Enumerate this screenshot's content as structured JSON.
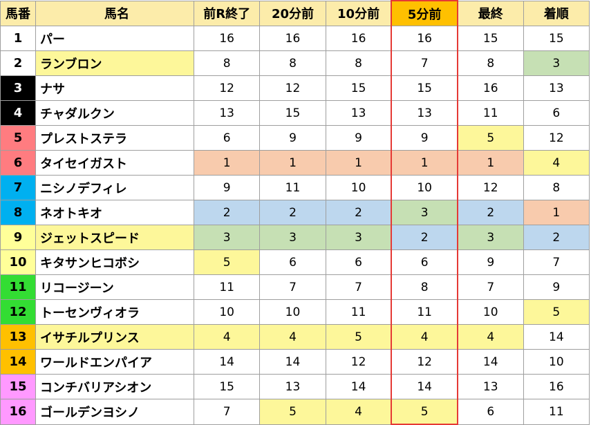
{
  "headers": [
    "馬番",
    "馬名",
    "前R終了",
    "20分前",
    "10分前",
    "5分前",
    "最終",
    "着順"
  ],
  "rows": [
    {
      "num": "1",
      "name": "パー",
      "v": [
        "16",
        "16",
        "16",
        "16",
        "15",
        "15"
      ]
    },
    {
      "num": "2",
      "name": "ランブロン",
      "v": [
        "8",
        "8",
        "8",
        "7",
        "8",
        "3"
      ]
    },
    {
      "num": "3",
      "name": "ナサ",
      "v": [
        "12",
        "12",
        "15",
        "15",
        "16",
        "13"
      ]
    },
    {
      "num": "4",
      "name": "チャダルクン",
      "v": [
        "13",
        "15",
        "13",
        "13",
        "11",
        "6"
      ]
    },
    {
      "num": "5",
      "name": "プレストステラ",
      "v": [
        "6",
        "9",
        "9",
        "9",
        "5",
        "12"
      ]
    },
    {
      "num": "6",
      "name": "タイセイガスト",
      "v": [
        "1",
        "1",
        "1",
        "1",
        "1",
        "4"
      ]
    },
    {
      "num": "7",
      "name": "ニシノデフィレ",
      "v": [
        "9",
        "11",
        "10",
        "10",
        "12",
        "8"
      ]
    },
    {
      "num": "8",
      "name": "ネオトキオ",
      "v": [
        "2",
        "2",
        "2",
        "3",
        "2",
        "1"
      ]
    },
    {
      "num": "9",
      "name": "ジェットスピード",
      "v": [
        "3",
        "3",
        "3",
        "2",
        "3",
        "2"
      ]
    },
    {
      "num": "10",
      "name": "キタサンヒコボシ",
      "v": [
        "5",
        "6",
        "6",
        "6",
        "9",
        "7"
      ]
    },
    {
      "num": "11",
      "name": "リコージーン",
      "v": [
        "11",
        "7",
        "7",
        "8",
        "7",
        "9"
      ]
    },
    {
      "num": "12",
      "name": "トーセンヴィオラ",
      "v": [
        "10",
        "10",
        "11",
        "11",
        "10",
        "5"
      ]
    },
    {
      "num": "13",
      "name": "イサチルプリンス",
      "v": [
        "4",
        "4",
        "5",
        "4",
        "4",
        "14"
      ]
    },
    {
      "num": "14",
      "name": "ワールドエンパイア",
      "v": [
        "14",
        "14",
        "12",
        "12",
        "14",
        "10"
      ]
    },
    {
      "num": "15",
      "name": "コンチバリアシオン",
      "v": [
        "15",
        "13",
        "14",
        "14",
        "13",
        "16"
      ]
    },
    {
      "num": "16",
      "name": "ゴールデンヨシノ",
      "v": [
        "7",
        "5",
        "4",
        "5",
        "6",
        "11"
      ]
    }
  ],
  "frame_colors": {
    "1": "#ffffff",
    "2": "#ffffff",
    "3": "#000000",
    "4": "#000000",
    "5": "#ff7c80",
    "6": "#ff7c80",
    "7": "#00b0f0",
    "8": "#00b0f0",
    "9": "#ffff99",
    "10": "#ffff99",
    "11": "#33dd33",
    "12": "#33dd33",
    "13": "#ffc000",
    "14": "#ffc000",
    "15": "#ff99ff",
    "16": "#ff99ff"
  },
  "frame_text_colors": {
    "3": "#ffffff",
    "4": "#ffffff"
  },
  "name_highlight": {
    "2": "c-y",
    "9": "c-y",
    "13": "c-y"
  },
  "cell_highlight": {
    "2": {
      "5": "c-g"
    },
    "5": {
      "4": "c-y"
    },
    "6": {
      "0": "c-o",
      "1": "c-o",
      "2": "c-o",
      "3": "c-o",
      "4": "c-o",
      "5": "c-y"
    },
    "8": {
      "0": "c-b",
      "1": "c-b",
      "2": "c-b",
      "3": "c-g",
      "4": "c-b",
      "5": "c-o"
    },
    "9": {
      "0": "c-g",
      "1": "c-g",
      "2": "c-g",
      "3": "c-b",
      "4": "c-g",
      "5": "c-b"
    },
    "10": {
      "0": "c-y"
    },
    "12": {
      "5": "c-y"
    },
    "13": {
      "0": "c-y",
      "1": "c-y",
      "2": "c-y",
      "3": "c-y",
      "4": "c-y"
    },
    "16": {
      "1": "c-y",
      "2": "c-y",
      "3": "c-y"
    }
  },
  "highlight_column": 3
}
